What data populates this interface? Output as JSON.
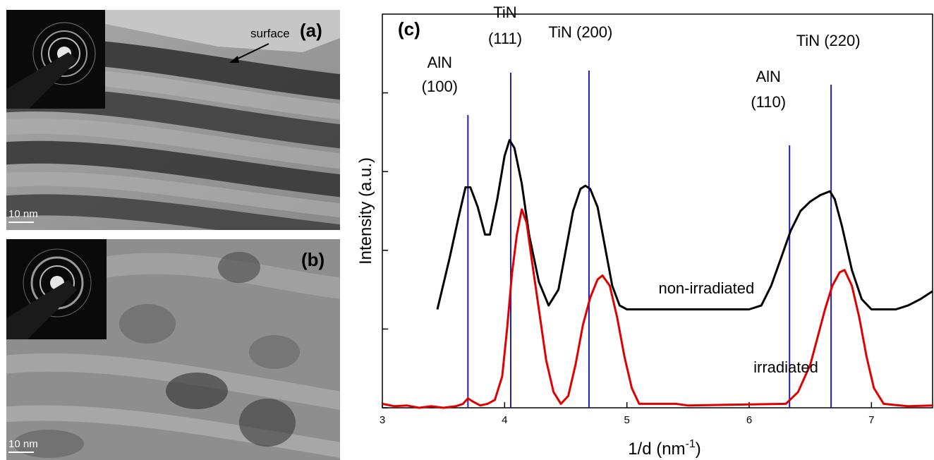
{
  "panel_a": {
    "label": "(a)",
    "annotation": "surface",
    "scale_bar": "10 nm"
  },
  "panel_b": {
    "label": "(b)",
    "scale_bar": "10 nm"
  },
  "chart_data": {
    "type": "line",
    "panel_label": "(c)",
    "xlabel": "1/d (nm",
    "xlabel_sup": "-1",
    "xlabel_close": ")",
    "ylabel": "Intensity (a.u.)",
    "xlim": [
      3,
      7.5
    ],
    "ylim": [
      0,
      5
    ],
    "xticks": [
      3,
      4,
      5,
      6,
      7
    ],
    "yticks": [
      0,
      1,
      2,
      3,
      4
    ],
    "reference_lines": [
      {
        "x": 3.7,
        "label_lines": [
          "AlN",
          "(100)"
        ]
      },
      {
        "x": 4.05,
        "label_lines": [
          "TiN",
          "(111)"
        ]
      },
      {
        "x": 4.69,
        "label_lines": [
          "TiN (200)"
        ]
      },
      {
        "x": 6.33,
        "label_lines": [
          "AlN",
          "(110)"
        ]
      },
      {
        "x": 6.67,
        "label_lines": [
          "TiN (220)"
        ]
      }
    ],
    "series": [
      {
        "name": "non-irradiated",
        "color": "#000000",
        "x": [
          3.45,
          3.55,
          3.62,
          3.68,
          3.72,
          3.78,
          3.84,
          3.88,
          3.94,
          4.0,
          4.04,
          4.08,
          4.14,
          4.2,
          4.28,
          4.36,
          4.44,
          4.5,
          4.56,
          4.62,
          4.66,
          4.7,
          4.76,
          4.82,
          4.88,
          4.94,
          5.0,
          6.0,
          6.1,
          6.18,
          6.26,
          6.34,
          6.42,
          6.5,
          6.58,
          6.66,
          6.7,
          6.76,
          6.84,
          6.92,
          7.0,
          7.1,
          7.2,
          7.3,
          7.4,
          7.5
        ],
        "y": [
          1.25,
          1.9,
          2.4,
          2.8,
          2.8,
          2.55,
          2.2,
          2.2,
          2.65,
          3.2,
          3.4,
          3.3,
          2.85,
          2.2,
          1.6,
          1.3,
          1.5,
          2.0,
          2.5,
          2.78,
          2.82,
          2.78,
          2.55,
          2.05,
          1.55,
          1.3,
          1.25,
          1.25,
          1.3,
          1.55,
          1.9,
          2.25,
          2.5,
          2.62,
          2.7,
          2.75,
          2.65,
          2.3,
          1.75,
          1.38,
          1.25,
          1.25,
          1.25,
          1.3,
          1.38,
          1.48
        ]
      },
      {
        "name": "irradiated",
        "color": "#e00000",
        "x": [
          3.0,
          3.1,
          3.2,
          3.3,
          3.4,
          3.5,
          3.6,
          3.66,
          3.7,
          3.74,
          3.8,
          3.86,
          3.92,
          3.98,
          4.02,
          4.06,
          4.1,
          4.14,
          4.18,
          4.22,
          4.28,
          4.34,
          4.4,
          4.46,
          4.52,
          4.58,
          4.64,
          4.7,
          4.76,
          4.8,
          4.86,
          4.92,
          4.98,
          5.04,
          5.1,
          5.4,
          5.5,
          6.3,
          6.4,
          6.5,
          6.56,
          6.62,
          6.68,
          6.74,
          6.78,
          6.84,
          6.9,
          6.96,
          7.02,
          7.1,
          7.3,
          7.5
        ],
        "y": [
          0.05,
          0.02,
          0.03,
          0.0,
          0.02,
          0.0,
          0.02,
          0.05,
          0.12,
          0.08,
          0.03,
          0.05,
          0.1,
          0.4,
          1.0,
          1.7,
          2.2,
          2.52,
          2.35,
          1.9,
          1.25,
          0.6,
          0.2,
          0.05,
          0.15,
          0.55,
          1.05,
          1.4,
          1.63,
          1.68,
          1.55,
          1.15,
          0.65,
          0.25,
          0.05,
          0.05,
          0.03,
          0.05,
          0.2,
          0.55,
          0.9,
          1.25,
          1.55,
          1.72,
          1.75,
          1.55,
          1.15,
          0.65,
          0.25,
          0.05,
          0.02,
          0.03
        ]
      }
    ],
    "series_labels": [
      {
        "text": "non-irradiated",
        "x": 5.65,
        "y": 1.45
      },
      {
        "text": "irradiated",
        "x": 6.3,
        "y": 0.45
      }
    ]
  }
}
